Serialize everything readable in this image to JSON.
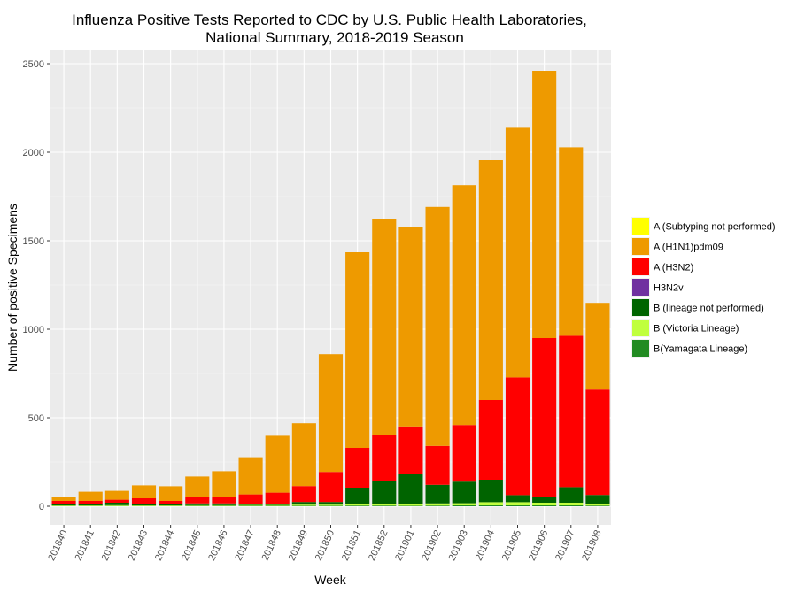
{
  "chart_data": {
    "type": "bar",
    "stacked": true,
    "title": [
      "Influenza Positive Tests Reported to CDC by U.S. Public Health Laboratories,",
      "National Summary, 2018-2019 Season"
    ],
    "xlabel": "Week",
    "ylabel": "Number of positive Specimens",
    "ylim": [
      -105,
      2575
    ],
    "yticks": [
      0,
      500,
      1000,
      1500,
      2000,
      2500
    ],
    "grid": true,
    "legend_position": "right",
    "categories": [
      "201840",
      "201841",
      "201842",
      "201843",
      "201844",
      "201845",
      "201846",
      "201847",
      "201848",
      "201849",
      "201850",
      "201851",
      "201852",
      "201901",
      "201902",
      "201903",
      "201904",
      "201905",
      "201906",
      "201907",
      "201908"
    ],
    "series": [
      {
        "name": "B(Yamagata Lineage)",
        "color": "#228B22",
        "values": [
          2,
          2,
          2,
          2,
          2,
          3,
          3,
          3,
          3,
          3,
          3,
          4,
          4,
          3,
          4,
          5,
          5,
          5,
          5,
          5,
          4
        ]
      },
      {
        "name": "B (Victoria Lineage)",
        "color": "#C0FF3E",
        "values": [
          3,
          3,
          4,
          3,
          3,
          3,
          3,
          4,
          4,
          6,
          6,
          8,
          9,
          8,
          12,
          12,
          18,
          18,
          15,
          15,
          10
        ]
      },
      {
        "name": "B (lineage not performed)",
        "color": "#006400",
        "values": [
          10,
          10,
          14,
          5,
          10,
          10,
          10,
          5,
          5,
          15,
          15,
          93,
          127,
          170,
          105,
          122,
          127,
          40,
          35,
          88,
          50
        ]
      },
      {
        "name": "H3N2v",
        "color": "#7030A0",
        "values": [
          0,
          0,
          0,
          0,
          0,
          0,
          0,
          0,
          0,
          0,
          0,
          0,
          0,
          0,
          0,
          0,
          0,
          0,
          0,
          0,
          0
        ]
      },
      {
        "name": "A (H3N2)",
        "color": "#FF0000",
        "values": [
          15,
          15,
          17,
          35,
          15,
          35,
          35,
          55,
          65,
          90,
          170,
          225,
          265,
          270,
          220,
          320,
          450,
          665,
          895,
          855,
          595
        ]
      },
      {
        "name": "A (H1N1)pdm09",
        "color": "#EE9A00",
        "values": [
          25,
          52,
          50,
          73,
          83,
          117,
          147,
          210,
          321,
          355,
          665,
          1105,
          1215,
          1125,
          1350,
          1355,
          1355,
          1410,
          1510,
          1065,
          490
        ]
      },
      {
        "name": "A (Subtyping not performed)",
        "color": "#FFFF00",
        "values": [
          0,
          0,
          0,
          0,
          0,
          0,
          0,
          0,
          0,
          0,
          0,
          0,
          0,
          0,
          0,
          0,
          0,
          0,
          0,
          0,
          0
        ]
      }
    ],
    "legend_order": [
      "A (Subtyping not performed)",
      "A (H1N1)pdm09",
      "A (H3N2)",
      "H3N2v",
      "B (lineage not performed)",
      "B (Victoria Lineage)",
      "B(Yamagata Lineage)"
    ]
  }
}
